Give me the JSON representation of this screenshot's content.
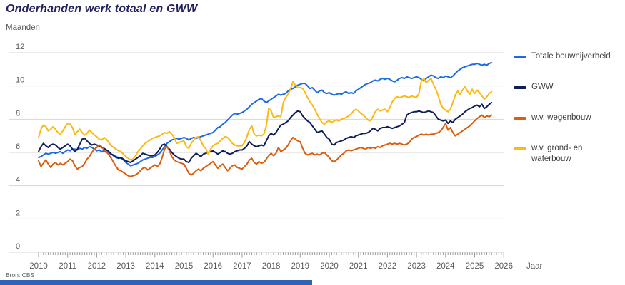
{
  "title": "Onderhanden werk totaal en GWW",
  "y_axis_unit": "Maanden",
  "x_axis_label": "Jaar",
  "source": "Bron: CBS",
  "accent_colors": {
    "footer_bar": "#3162b8",
    "grid": "#d6d6d6",
    "axis_text": "#595959",
    "tick": "#9a9a9a",
    "title_text": "#24215f"
  },
  "chart_data": {
    "type": "line",
    "title": "Onderhanden werk totaal en GWW",
    "ylabel": "Maanden",
    "xlabel": "Jaar",
    "ylim": [
      0,
      12
    ],
    "xlim": [
      2010,
      2026
    ],
    "grid": true,
    "legend_position": "right",
    "y_ticks": [
      0,
      2,
      4,
      6,
      8,
      10,
      12
    ],
    "x_ticks_years": [
      2010,
      2011,
      2012,
      2013,
      2014,
      2015,
      2016,
      2017,
      2018,
      2019,
      2020,
      2021,
      2022,
      2023,
      2024,
      2025,
      2026
    ],
    "x_minor_tick_interval_months": 1,
    "x_start_year": 2010,
    "x_step_years": 0.0833333,
    "series": [
      {
        "name": "Totale bouwnijverheid",
        "color": "#1a6be1",
        "values": [
          5.7,
          5.75,
          5.85,
          5.95,
          5.9,
          5.95,
          6.0,
          5.95,
          6.0,
          6.05,
          5.95,
          6.05,
          6.15,
          6.1,
          6.2,
          6.2,
          6.15,
          6.25,
          6.2,
          6.3,
          6.25,
          6.35,
          6.3,
          6.2,
          6.1,
          6.15,
          6.05,
          6.1,
          6.0,
          5.95,
          5.9,
          5.85,
          5.75,
          5.7,
          5.65,
          5.55,
          5.4,
          5.3,
          5.2,
          5.25,
          5.3,
          5.35,
          5.45,
          5.55,
          5.6,
          5.65,
          5.7,
          5.7,
          5.75,
          5.85,
          5.95,
          6.15,
          6.35,
          6.55,
          6.65,
          6.75,
          6.8,
          6.85,
          6.8,
          6.85,
          6.9,
          6.85,
          6.75,
          6.85,
          6.9,
          6.85,
          6.9,
          6.95,
          7.0,
          7.05,
          7.1,
          7.15,
          7.2,
          7.35,
          7.5,
          7.55,
          7.7,
          7.8,
          7.95,
          8.1,
          8.25,
          8.35,
          8.3,
          8.35,
          8.4,
          8.5,
          8.6,
          8.75,
          8.9,
          9.0,
          9.1,
          9.2,
          9.25,
          9.1,
          9.0,
          9.1,
          9.2,
          9.3,
          9.4,
          9.5,
          9.45,
          9.5,
          9.55,
          9.7,
          9.8,
          9.85,
          9.95,
          10.05,
          10.1,
          10.15,
          10.15,
          10.0,
          9.85,
          9.9,
          9.75,
          9.6,
          9.7,
          9.75,
          9.6,
          9.55,
          9.6,
          9.5,
          9.45,
          9.5,
          9.55,
          9.5,
          9.6,
          9.65,
          9.55,
          9.6,
          9.55,
          9.7,
          9.8,
          9.9,
          10.0,
          10.1,
          10.15,
          10.2,
          10.3,
          10.35,
          10.3,
          10.4,
          10.45,
          10.4,
          10.45,
          10.4,
          10.3,
          10.25,
          10.35,
          10.45,
          10.5,
          10.45,
          10.55,
          10.5,
          10.45,
          10.5,
          10.55,
          10.5,
          10.4,
          10.3,
          10.45,
          10.55,
          10.65,
          10.6,
          10.5,
          10.45,
          10.55,
          10.5,
          10.6,
          10.55,
          10.5,
          10.6,
          10.75,
          10.9,
          11.0,
          11.1,
          11.15,
          11.2,
          11.25,
          11.3,
          11.3,
          11.35,
          11.3,
          11.25,
          11.3,
          11.25,
          11.35,
          11.4
        ]
      },
      {
        "name": "GWW",
        "color": "#0f1e5a",
        "values": [
          6.05,
          6.35,
          6.55,
          6.4,
          6.3,
          6.45,
          6.5,
          6.45,
          6.3,
          6.2,
          6.3,
          6.4,
          6.5,
          6.4,
          6.2,
          6.05,
          6.2,
          6.5,
          6.8,
          6.85,
          6.7,
          6.55,
          6.45,
          6.5,
          6.45,
          6.4,
          6.3,
          6.25,
          6.15,
          6.05,
          5.9,
          5.8,
          5.7,
          5.65,
          5.7,
          5.6,
          5.5,
          5.45,
          5.4,
          5.5,
          5.6,
          5.7,
          5.8,
          5.95,
          5.9,
          5.85,
          5.8,
          5.8,
          5.85,
          6.0,
          6.2,
          6.45,
          6.5,
          6.35,
          6.2,
          6.0,
          5.85,
          5.75,
          5.65,
          5.6,
          5.6,
          5.45,
          5.4,
          5.65,
          5.8,
          5.95,
          5.85,
          5.75,
          5.9,
          5.95,
          6.0,
          6.05,
          6.1,
          6.0,
          5.9,
          6.0,
          6.1,
          6.05,
          5.95,
          5.9,
          5.95,
          6.05,
          6.1,
          6.15,
          6.15,
          6.25,
          6.4,
          6.65,
          6.5,
          6.4,
          6.35,
          6.4,
          6.45,
          6.4,
          6.7,
          7.0,
          7.15,
          7.05,
          7.2,
          7.45,
          7.65,
          7.7,
          7.8,
          7.9,
          8.1,
          8.25,
          8.4,
          8.5,
          8.45,
          8.2,
          8.05,
          7.9,
          7.8,
          7.6,
          7.4,
          7.2,
          7.25,
          7.3,
          7.1,
          6.9,
          6.8,
          6.5,
          6.45,
          6.6,
          6.65,
          6.7,
          6.75,
          6.85,
          6.9,
          6.95,
          6.9,
          7.0,
          7.05,
          7.1,
          7.15,
          7.15,
          7.2,
          7.3,
          7.45,
          7.4,
          7.3,
          7.45,
          7.5,
          7.5,
          7.55,
          7.5,
          7.45,
          7.5,
          7.55,
          7.6,
          7.7,
          7.8,
          8.25,
          8.35,
          8.4,
          8.45,
          8.45,
          8.5,
          8.45,
          8.4,
          8.45,
          8.5,
          8.45,
          8.4,
          8.2,
          8.0,
          7.95,
          7.9,
          7.95,
          7.75,
          7.9,
          7.8,
          8.0,
          8.1,
          8.2,
          8.3,
          8.45,
          8.55,
          8.65,
          8.7,
          8.8,
          8.85,
          8.75,
          8.9,
          8.65,
          8.75,
          8.9,
          9.0
        ]
      },
      {
        "name": "w.v. wegenbouw",
        "color": "#d95e0e",
        "values": [
          5.5,
          5.15,
          5.35,
          5.55,
          5.3,
          5.1,
          5.3,
          5.4,
          5.25,
          5.35,
          5.25,
          5.35,
          5.45,
          5.6,
          5.5,
          5.2,
          5.0,
          5.1,
          5.15,
          5.35,
          5.6,
          5.75,
          6.0,
          6.2,
          6.3,
          6.45,
          6.35,
          6.15,
          6.05,
          5.85,
          5.65,
          5.4,
          5.15,
          4.95,
          4.9,
          4.8,
          4.7,
          4.6,
          4.55,
          4.6,
          4.65,
          4.75,
          4.9,
          5.05,
          5.1,
          4.95,
          5.05,
          5.15,
          5.25,
          5.15,
          5.3,
          5.7,
          6.2,
          6.35,
          6.1,
          5.75,
          5.55,
          5.45,
          5.4,
          5.35,
          5.3,
          5.05,
          4.75,
          4.65,
          4.75,
          4.9,
          5.0,
          4.9,
          5.05,
          5.15,
          5.25,
          5.35,
          5.45,
          5.25,
          5.05,
          5.2,
          5.3,
          5.1,
          4.9,
          5.05,
          5.2,
          5.25,
          5.1,
          5.05,
          5.0,
          5.15,
          5.3,
          5.55,
          5.65,
          5.4,
          5.3,
          5.45,
          5.35,
          5.4,
          5.6,
          5.8,
          5.95,
          5.8,
          5.95,
          6.3,
          6.05,
          6.15,
          6.25,
          6.45,
          6.7,
          6.9,
          6.8,
          6.7,
          6.65,
          6.25,
          5.95,
          5.85,
          5.9,
          5.95,
          5.85,
          5.9,
          5.85,
          5.95,
          6.0,
          5.85,
          5.7,
          5.5,
          5.45,
          5.55,
          5.7,
          5.85,
          5.95,
          6.1,
          6.15,
          6.1,
          6.15,
          6.2,
          6.25,
          6.3,
          6.25,
          6.2,
          6.3,
          6.25,
          6.3,
          6.25,
          6.35,
          6.3,
          6.4,
          6.45,
          6.5,
          6.55,
          6.5,
          6.55,
          6.5,
          6.55,
          6.5,
          6.45,
          6.5,
          6.6,
          6.8,
          6.9,
          6.95,
          7.05,
          7.1,
          7.05,
          7.1,
          7.05,
          7.1,
          7.1,
          7.15,
          7.2,
          7.3,
          7.5,
          7.75,
          7.35,
          7.5,
          7.2,
          7.0,
          7.1,
          7.2,
          7.3,
          7.4,
          7.5,
          7.6,
          7.75,
          7.9,
          8.05,
          8.15,
          8.25,
          8.1,
          8.2,
          8.15,
          8.25
        ]
      },
      {
        "name": "w.v. grond- en waterbouw",
        "color": "#fdb813",
        "values": [
          6.9,
          7.4,
          7.65,
          7.55,
          7.3,
          7.4,
          7.55,
          7.4,
          7.2,
          7.1,
          7.3,
          7.55,
          7.75,
          7.7,
          7.5,
          7.1,
          7.25,
          7.4,
          7.2,
          7.05,
          7.15,
          7.35,
          7.2,
          7.05,
          6.95,
          6.8,
          6.75,
          6.9,
          6.8,
          6.6,
          6.4,
          6.3,
          6.2,
          6.1,
          6.05,
          5.9,
          5.75,
          5.65,
          5.55,
          5.6,
          5.8,
          6.05,
          6.2,
          6.4,
          6.55,
          6.65,
          6.75,
          6.85,
          6.9,
          6.95,
          7.0,
          7.1,
          7.2,
          7.15,
          7.25,
          7.1,
          6.9,
          6.55,
          6.6,
          6.65,
          6.7,
          6.35,
          6.25,
          6.55,
          6.75,
          6.9,
          6.95,
          6.7,
          6.4,
          6.25,
          5.9,
          6.2,
          6.4,
          6.5,
          6.55,
          6.7,
          6.85,
          6.95,
          6.9,
          6.75,
          6.55,
          6.45,
          6.4,
          6.4,
          6.4,
          6.6,
          6.95,
          7.4,
          7.6,
          7.1,
          7.0,
          7.05,
          7.0,
          7.1,
          7.6,
          8.65,
          8.5,
          8.1,
          8.15,
          8.2,
          8.15,
          9.0,
          9.3,
          9.5,
          9.8,
          10.25,
          10.05,
          9.9,
          9.9,
          9.85,
          9.6,
          9.3,
          9.05,
          8.85,
          8.6,
          8.3,
          8.05,
          7.8,
          7.7,
          7.85,
          7.9,
          7.8,
          7.9,
          7.95,
          7.9,
          8.0,
          8.05,
          8.1,
          8.2,
          8.3,
          8.5,
          8.6,
          8.5,
          8.35,
          8.25,
          8.1,
          7.95,
          7.9,
          8.15,
          8.45,
          8.6,
          8.5,
          8.55,
          8.6,
          8.45,
          8.7,
          9.05,
          9.25,
          9.35,
          9.3,
          9.35,
          9.4,
          9.35,
          9.3,
          9.4,
          9.35,
          9.3,
          9.55,
          10.3,
          10.45,
          10.2,
          10.35,
          10.45,
          10.1,
          9.8,
          9.4,
          8.9,
          8.65,
          8.55,
          8.45,
          8.6,
          9.0,
          9.45,
          9.7,
          9.5,
          9.75,
          9.95,
          9.7,
          9.5,
          9.8,
          9.55,
          9.75,
          9.6,
          9.4,
          9.2,
          9.35,
          9.55,
          9.65
        ]
      }
    ]
  }
}
